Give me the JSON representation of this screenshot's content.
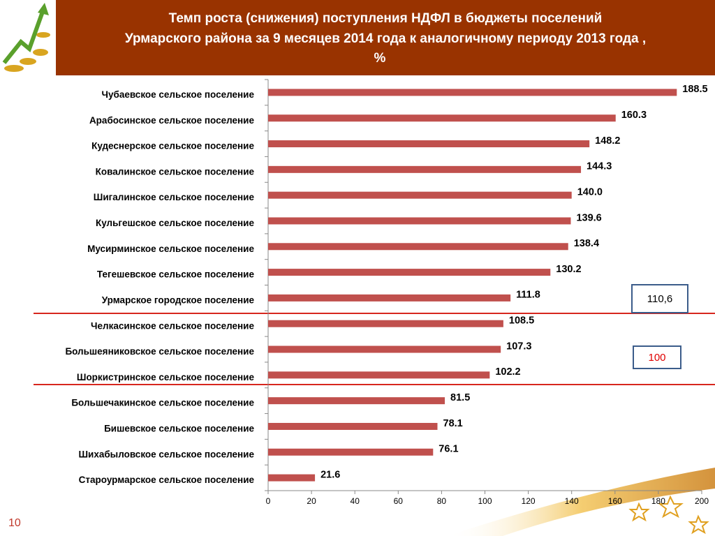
{
  "chart_data": {
    "type": "bar",
    "orientation": "horizontal",
    "title": [
      "Темп роста (снижения) поступления НДФЛ в бюджеты поселений",
      "Урмарского района за  9 месяцев 2014 года к аналогичному периоду  2013 года ,",
      "%"
    ],
    "categories": [
      "Чубаевское  сельское поселение",
      "Арабосинское сельское поселение",
      "Кудеснерское  сельское поселение",
      "Ковалинское  сельское поселение",
      "Шигалинское  сельское поселение",
      "Кульгешское  сельское поселение",
      "Мусирминское  сельское поселение",
      "Тегешевское  сельское поселение",
      "Урмарское  городское поселение",
      "Челкасинское  сельское поселение",
      "Большеяниковское  сельское поселение",
      "Шоркистринское  сельское поселение",
      "Большечакинское  сельское поселение",
      "Бишевское  сельское поселение",
      "Шихабыловское  сельское поселение",
      "Староурмарское  сельское поселение"
    ],
    "values": [
      188.5,
      160.3,
      148.2,
      144.3,
      140.0,
      139.6,
      138.4,
      130.2,
      111.8,
      108.5,
      107.3,
      102.2,
      81.5,
      78.1,
      76.1,
      21.6
    ],
    "value_labels": [
      "188.5",
      "160.3",
      "148.2",
      "144.3",
      "140.0",
      "139.6",
      "138.4",
      "130.2",
      "111.8",
      "108.5",
      "107.3",
      "102.2",
      "81.5",
      "78.1",
      "76.1",
      "21.6"
    ],
    "color": "#c0504d",
    "xlim": [
      0,
      200
    ],
    "xticks": [
      0,
      20,
      40,
      60,
      80,
      100,
      120,
      140,
      160,
      180,
      200
    ],
    "annotations": [
      "110,6",
      "100"
    ]
  },
  "slide": {
    "page_number": "10"
  }
}
